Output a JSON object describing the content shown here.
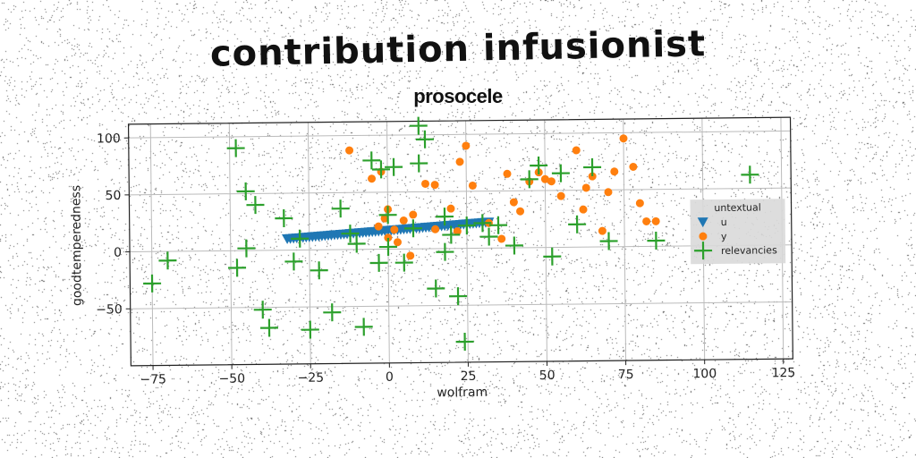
{
  "suptitle": "contribution infusionist",
  "chart_data": {
    "type": "scatter",
    "title": "prosocele",
    "xlabel": "wolfram",
    "ylabel": "goodtemperedness",
    "xlim": [
      -82,
      128
    ],
    "ylim": [
      -100,
      112
    ],
    "xticks": [
      -75,
      -50,
      -25,
      0,
      25,
      50,
      75,
      100,
      125
    ],
    "yticks": [
      -50,
      0,
      50,
      100
    ],
    "xtick_labels": [
      "−75",
      "−50",
      "−25",
      "0",
      "25",
      "50",
      "75",
      "100",
      "125"
    ],
    "ytick_labels": [
      "−50",
      "0",
      "50",
      "100"
    ],
    "grid": true,
    "legend": {
      "title": "untextual",
      "placement": "right",
      "entries": [
        "u",
        "y",
        "relevancies"
      ]
    },
    "colors": {
      "u": "#1f77b4",
      "y": "#ff7f0e",
      "relevancies": "#2ca02c"
    },
    "series": [
      {
        "name": "u",
        "marker": "triangle_down",
        "x": [
          -32,
          -31,
          -30,
          -29,
          -28,
          -27,
          -26,
          -25,
          -24,
          -23,
          -22,
          -21,
          -20,
          -19,
          -18,
          -17,
          -16,
          -15,
          -14,
          -13,
          -12,
          -11,
          -10,
          -9,
          -8,
          -7,
          -6,
          -5,
          -4,
          -3,
          -2,
          -1,
          0,
          1,
          2,
          3,
          4,
          5,
          6,
          7,
          8,
          9,
          10,
          11,
          12,
          13,
          14,
          15,
          16,
          17,
          18,
          19,
          20,
          21,
          22,
          23,
          24,
          25,
          26,
          27,
          28,
          29,
          30,
          31,
          32
        ],
        "y": [
          10.0,
          10.2,
          10.4,
          10.6,
          10.8,
          11.0,
          11.2,
          11.4,
          11.6,
          11.8,
          12.0,
          12.2,
          12.4,
          12.6,
          12.8,
          13.0,
          13.2,
          13.4,
          13.6,
          13.8,
          14.0,
          14.2,
          14.4,
          14.6,
          14.8,
          15.0,
          15.2,
          15.4,
          15.6,
          15.8,
          16.0,
          16.2,
          16.4,
          16.6,
          16.8,
          17.0,
          17.2,
          17.4,
          17.6,
          17.8,
          18.0,
          18.2,
          18.4,
          18.6,
          18.8,
          19.0,
          19.2,
          19.4,
          19.6,
          19.8,
          20.0,
          20.2,
          20.4,
          20.6,
          20.8,
          21.0,
          21.2,
          21.4,
          21.6,
          21.8,
          22.0,
          22.2,
          22.4,
          22.6,
          22.8
        ]
      },
      {
        "name": "y",
        "marker": "circle",
        "x": [
          -12,
          -2,
          -5,
          -3,
          0,
          2,
          5,
          8,
          12,
          15,
          20,
          23,
          25,
          27,
          32,
          36,
          38,
          40,
          42,
          45,
          48,
          50,
          52,
          55,
          60,
          62,
          63,
          65,
          68,
          70,
          72,
          75,
          78,
          80,
          82,
          85,
          3,
          -1,
          15,
          22,
          0,
          7
        ],
        "y": [
          87,
          68,
          62,
          20,
          10,
          17,
          25,
          30,
          57,
          17,
          35,
          76,
          90,
          55,
          22,
          8,
          65,
          40,
          32,
          58,
          66,
          60,
          58,
          45,
          85,
          33,
          52,
          62,
          14,
          48,
          66,
          95,
          70,
          38,
          22,
          22,
          6,
          27,
          56,
          15,
          35,
          -6
        ]
      },
      {
        "name": "relevancies",
        "marker": "plus",
        "x": [
          -75,
          -70,
          -48,
          -45,
          -42,
          -40,
          -45,
          -38,
          -33,
          -28,
          -25,
          -22,
          -18,
          -15,
          -10,
          -8,
          -5,
          -3,
          -2,
          0,
          2,
          5,
          8,
          10,
          12,
          15,
          18,
          20,
          22,
          24,
          35,
          40,
          45,
          52,
          55,
          60,
          65,
          70,
          85,
          115,
          -48,
          -12,
          0,
          30,
          32,
          25,
          48,
          18,
          10,
          -30
        ],
        "y": [
          -28,
          -8,
          90,
          52,
          40,
          -52,
          2,
          -68,
          28,
          10,
          -70,
          -18,
          -55,
          36,
          5,
          -68,
          78,
          -12,
          70,
          2,
          72,
          -12,
          18,
          108,
          96,
          -35,
          28,
          12,
          -42,
          -82,
          20,
          2,
          60,
          -8,
          65,
          20,
          70,
          5,
          5,
          62,
          -15,
          14,
          30,
          22,
          10,
          20,
          72,
          -3,
          75,
          -10
        ]
      }
    ]
  }
}
